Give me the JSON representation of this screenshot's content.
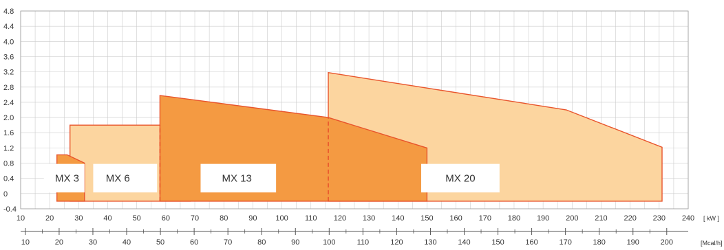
{
  "chart_data": {
    "type": "area",
    "title": "",
    "xlabel": "",
    "ylabel": "",
    "grid": true,
    "xlim": [
      10,
      240
    ],
    "ylim": [
      -0.4,
      4.8
    ],
    "x_ticks": [
      10,
      20,
      30,
      40,
      50,
      60,
      70,
      80,
      90,
      100,
      110,
      120,
      130,
      140,
      150,
      160,
      170,
      180,
      190,
      200,
      210,
      220,
      230,
      240
    ],
    "y_ticks": [
      "-0.4",
      "0",
      "0.4",
      "0.8",
      "1.2",
      "1.6",
      "2.0",
      "2.4",
      "2.8",
      "3.2",
      "3.6",
      "4.0",
      "4.4",
      "4.8"
    ],
    "x_unit": "[ kW ]",
    "secondary_axis": {
      "unit": "[Mcal/h]",
      "ticks": [
        10,
        20,
        30,
        40,
        50,
        60,
        70,
        80,
        90,
        100,
        110,
        120,
        130,
        140,
        150,
        160,
        170,
        180,
        190,
        200
      ],
      "kw_per_unit": 1.163
    },
    "colors": {
      "light_fill": "#fcd59f",
      "dark_fill": "#f49a42",
      "stroke": "#e8542c",
      "grid": "#cccccc",
      "axis": "#555555"
    },
    "series": [
      {
        "name": "MX 20",
        "shade": "light",
        "points": [
          [
            116,
            -0.2
          ],
          [
            116,
            3.18
          ],
          [
            198,
            2.2
          ],
          [
            231,
            1.22
          ],
          [
            231,
            -0.2
          ]
        ],
        "label_at": [
          161.5,
          0.4
        ]
      },
      {
        "name": "MX 6",
        "shade": "light",
        "points": [
          [
            27,
            -0.2
          ],
          [
            27,
            1.8
          ],
          [
            58,
            1.8
          ],
          [
            68.5,
            1.2
          ],
          [
            68.5,
            -0.2
          ]
        ],
        "label_at": [
          43.5,
          0.4
        ]
      },
      {
        "name": "MX 13",
        "shade": "dark",
        "points": [
          [
            58,
            -0.2
          ],
          [
            58,
            2.58
          ],
          [
            116,
            2.0
          ],
          [
            150,
            1.2
          ],
          [
            150,
            -0.2
          ]
        ],
        "label_at": [
          84.5,
          0.4
        ]
      },
      {
        "name": "MX 3",
        "shade": "dark",
        "points": [
          [
            22.5,
            -0.2
          ],
          [
            22.5,
            1.02
          ],
          [
            26,
            1.02
          ],
          [
            32,
            0.8
          ],
          [
            32,
            -0.2
          ]
        ],
        "label_at": [
          26,
          0.4
        ]
      }
    ],
    "dashed_lines": [
      {
        "x": 58,
        "y_from": -0.2,
        "y_to": 1.8
      },
      {
        "x": 116,
        "y_from": -0.2,
        "y_to": 2.0
      }
    ],
    "label_boxes": [
      {
        "x_from": 18,
        "x_to": 32,
        "y_from": 0.03,
        "y_to": 0.78
      },
      {
        "x_from": 35,
        "x_to": 57,
        "y_from": 0.03,
        "y_to": 0.78
      },
      {
        "x_from": 72,
        "x_to": 98,
        "y_from": 0.03,
        "y_to": 0.78
      },
      {
        "x_from": 148,
        "x_to": 175,
        "y_from": 0.03,
        "y_to": 0.78
      }
    ]
  }
}
